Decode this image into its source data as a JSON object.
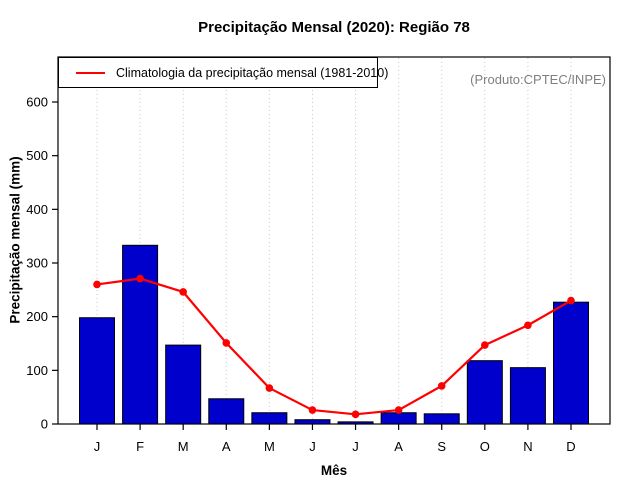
{
  "chart_data": {
    "type": "bar",
    "title": "Precipitação Mensal (2020): Região 78",
    "xlabel": "Mês",
    "ylabel": "Precipitação mensal (mm)",
    "annotation": "(Produto:CPTEC/INPE)",
    "annotation_color": "#7f7f7f",
    "categories": [
      "J",
      "F",
      "M",
      "A",
      "M",
      "J",
      "J",
      "A",
      "S",
      "O",
      "N",
      "D"
    ],
    "yticks": [
      0,
      100,
      200,
      300,
      400,
      500,
      600
    ],
    "ylim": [
      0,
      684
    ],
    "grid": "vertical-dotted",
    "legend_position": "top-left",
    "series": [
      {
        "name": "Precipitação Mensal (2020)",
        "type": "bar",
        "color": "#0000CC",
        "values": [
          198,
          333,
          147,
          47,
          21,
          8,
          4,
          21,
          19,
          118,
          105,
          227
        ]
      },
      {
        "name": "Climatologia da precipitação mensal (1981-2010)",
        "type": "line",
        "color": "#FF0000",
        "values": [
          260,
          271,
          246,
          151,
          67,
          26,
          18,
          26,
          71,
          147,
          184,
          230
        ]
      }
    ]
  }
}
